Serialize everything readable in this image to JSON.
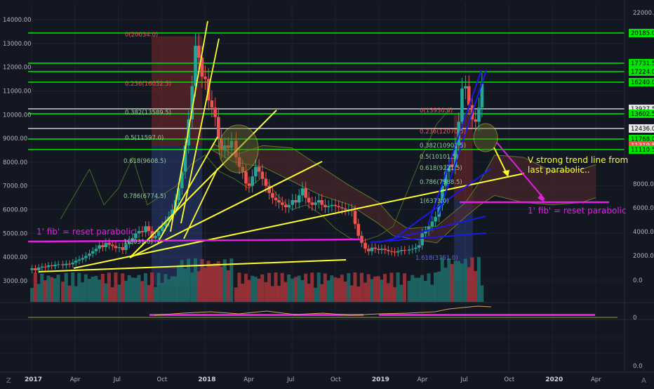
{
  "colors": {
    "background": "#131722",
    "grid": "#1e2230",
    "up_candle": "#26a69a",
    "down_candle": "#ef5350",
    "vol_up": "#1f6e6a",
    "vol_down": "#a8343b",
    "green_level": "#00e600",
    "white_level": "#c8c8c8",
    "yellow_trend": "#ffff2e",
    "magenta": "#e21fe0",
    "blue_trend": "#1a1ae6",
    "olive_ichimoku": "#5f7a2a",
    "axis_text": "#b2b5be",
    "last_price_badge": "#ef5350"
  },
  "left_axis_ticks": [
    "14000.00",
    "13000.00",
    "12000.00",
    "11000.00",
    "10000.00",
    "9000.00",
    "8000.00",
    "7000.00",
    "6000.00",
    "5000.00",
    "4000.00",
    "3000.00"
  ],
  "right_axis_plain": [
    "22000.0",
    "8000.0",
    "6000.0",
    "4000.0",
    "2000.0",
    "0.0"
  ],
  "right_axis_badges": [
    {
      "label": "20185.0",
      "kind": "green"
    },
    {
      "label": "17731.5",
      "kind": "green"
    },
    {
      "label": "17224.0",
      "kind": "green"
    },
    {
      "label": "16240.0",
      "kind": "green"
    },
    {
      "label": "13927.5",
      "kind": "white"
    },
    {
      "label": "13602.5",
      "kind": "green"
    },
    {
      "label": "12436.0",
      "kind": "white"
    },
    {
      "label": "11768.0",
      "kind": "green"
    },
    {
      "label": "11319.5",
      "kind": "red"
    },
    {
      "label": "11110.5",
      "kind": "green"
    }
  ],
  "lower_axis_ticks": [
    "0",
    "0.0"
  ],
  "x_axis_ticks": [
    "2017",
    "Apr",
    "Jul",
    "Oct",
    "2018",
    "Apr",
    "Jul",
    "Oct",
    "2019",
    "Apr",
    "Jul",
    "Oct",
    "2020",
    "Apr"
  ],
  "fib_labels_2017": [
    "0(20034.0)",
    "0.236(16052.5)",
    "0.382(13589.5)",
    "0.5(11597.0)",
    "0.618(9608.5)",
    "0.786(6774.5)",
    "1(3031.0)"
  ],
  "fib_labels_2019": [
    "0(13930.0)",
    "0.236(12070.5)",
    "0.382(10901.5)",
    "0.5(10101.5)",
    "0.618(9221.5)",
    "0.786(7988.5)",
    "1(6373.0)",
    "1.618(3751.0)"
  ],
  "annotations": {
    "left_reset": "1' fib' = reset parabolic",
    "right_reset": "1' fib' = reset parabolic",
    "trend_note": "V strong trend line from last parabolic.."
  },
  "chart_data": {
    "type": "candlestick",
    "title": "",
    "xlabel": "",
    "ylabel": "",
    "x_range": [
      "2017-01",
      "2020-05"
    ],
    "ylim": [
      2700,
      14600
    ],
    "grid": true,
    "price_levels": {
      "green": [
        20185.0,
        17731.5,
        17224.0,
        16240.0,
        13602.5,
        11768.0,
        11110.5
      ],
      "white": [
        13927.5,
        12436.0
      ],
      "last_price": 11319.5
    },
    "weekly_close": [
      [
        "2017-01-02",
        3530
      ],
      [
        "2017-01-09",
        3450
      ],
      [
        "2017-01-16",
        3560
      ],
      [
        "2017-01-23",
        3600
      ],
      [
        "2017-01-30",
        3580
      ],
      [
        "2017-02-06",
        3650
      ],
      [
        "2017-02-13",
        3620
      ],
      [
        "2017-02-20",
        3680
      ],
      [
        "2017-02-27",
        3700
      ],
      [
        "2017-03-06",
        3660
      ],
      [
        "2017-03-13",
        3720
      ],
      [
        "2017-03-20",
        3700
      ],
      [
        "2017-03-27",
        3770
      ],
      [
        "2017-04-03",
        3850
      ],
      [
        "2017-04-10",
        3900
      ],
      [
        "2017-04-17",
        3960
      ],
      [
        "2017-04-24",
        4050
      ],
      [
        "2017-05-01",
        4150
      ],
      [
        "2017-05-08",
        4250
      ],
      [
        "2017-05-15",
        4350
      ],
      [
        "2017-05-22",
        4500
      ],
      [
        "2017-05-29",
        4420
      ],
      [
        "2017-06-05",
        4600
      ],
      [
        "2017-06-12",
        4520
      ],
      [
        "2017-06-19",
        4470
      ],
      [
        "2017-06-26",
        4380
      ],
      [
        "2017-07-03",
        4420
      ],
      [
        "2017-07-10",
        4300
      ],
      [
        "2017-07-17",
        4550
      ],
      [
        "2017-07-24",
        4700
      ],
      [
        "2017-07-31",
        4800
      ],
      [
        "2017-08-07",
        5000
      ],
      [
        "2017-08-14",
        5100
      ],
      [
        "2017-08-21",
        5050
      ],
      [
        "2017-08-28",
        5300
      ],
      [
        "2017-09-04",
        5100
      ],
      [
        "2017-09-11",
        4800
      ],
      [
        "2017-09-18",
        4900
      ],
      [
        "2017-09-25",
        5100
      ],
      [
        "2017-10-02",
        5300
      ],
      [
        "2017-10-09",
        5500
      ],
      [
        "2017-10-16",
        5700
      ],
      [
        "2017-10-23",
        6000
      ],
      [
        "2017-10-30",
        6400
      ],
      [
        "2017-11-06",
        6900
      ],
      [
        "2017-11-13",
        7600
      ],
      [
        "2017-11-20",
        8700
      ],
      [
        "2017-11-27",
        9800
      ],
      [
        "2017-12-04",
        11200
      ],
      [
        "2017-12-11",
        12900
      ],
      [
        "2017-12-18",
        12400
      ],
      [
        "2017-12-25",
        11600
      ],
      [
        "2018-01-01",
        11500
      ],
      [
        "2018-01-08",
        10600
      ],
      [
        "2018-01-15",
        10300
      ],
      [
        "2018-01-22",
        9900
      ],
      [
        "2018-01-29",
        9000
      ],
      [
        "2018-02-05",
        8500
      ],
      [
        "2018-02-12",
        8700
      ],
      [
        "2018-02-19",
        8600
      ],
      [
        "2018-02-26",
        8900
      ],
      [
        "2018-03-05",
        8200
      ],
      [
        "2018-03-12",
        7800
      ],
      [
        "2018-03-19",
        7600
      ],
      [
        "2018-03-26",
        7100
      ],
      [
        "2018-04-02",
        7000
      ],
      [
        "2018-04-09",
        7400
      ],
      [
        "2018-04-16",
        7800
      ],
      [
        "2018-04-23",
        7600
      ],
      [
        "2018-04-30",
        7300
      ],
      [
        "2018-05-07",
        7000
      ],
      [
        "2018-05-14",
        6700
      ],
      [
        "2018-05-21",
        6500
      ],
      [
        "2018-05-28",
        6400
      ],
      [
        "2018-06-04",
        6300
      ],
      [
        "2018-06-11",
        6200
      ],
      [
        "2018-06-18",
        6100
      ],
      [
        "2018-06-25",
        6200
      ],
      [
        "2018-07-02",
        6400
      ],
      [
        "2018-07-09",
        6300
      ],
      [
        "2018-07-16",
        6600
      ],
      [
        "2018-07-23",
        6900
      ],
      [
        "2018-07-30",
        6500
      ],
      [
        "2018-08-06",
        6300
      ],
      [
        "2018-08-13",
        6200
      ],
      [
        "2018-08-20",
        6300
      ],
      [
        "2018-08-27",
        6400
      ],
      [
        "2018-09-03",
        6200
      ],
      [
        "2018-09-10",
        6100
      ],
      [
        "2018-09-17",
        6150
      ],
      [
        "2018-09-24",
        6200
      ],
      [
        "2018-10-01",
        6150
      ],
      [
        "2018-10-08",
        6100
      ],
      [
        "2018-10-15",
        6050
      ],
      [
        "2018-10-22",
        6000
      ],
      [
        "2018-10-29",
        6000
      ],
      [
        "2018-11-05",
        5950
      ],
      [
        "2018-11-12",
        5400
      ],
      [
        "2018-11-19",
        4900
      ],
      [
        "2018-11-26",
        4600
      ],
      [
        "2018-12-03",
        4350
      ],
      [
        "2018-12-10",
        4250
      ],
      [
        "2018-12-17",
        4400
      ],
      [
        "2018-12-24",
        4350
      ],
      [
        "2018-12-31",
        4300
      ],
      [
        "2019-01-07",
        4350
      ],
      [
        "2019-01-14",
        4300
      ],
      [
        "2019-01-21",
        4250
      ],
      [
        "2019-01-28",
        4230
      ],
      [
        "2019-02-04",
        4200
      ],
      [
        "2019-02-11",
        4250
      ],
      [
        "2019-02-18",
        4300
      ],
      [
        "2019-02-25",
        4280
      ],
      [
        "2019-03-04",
        4320
      ],
      [
        "2019-03-11",
        4350
      ],
      [
        "2019-03-18",
        4400
      ],
      [
        "2019-03-25",
        4500
      ],
      [
        "2019-04-01",
        5000
      ],
      [
        "2019-04-08",
        5100
      ],
      [
        "2019-04-15",
        5300
      ],
      [
        "2019-04-22",
        5500
      ],
      [
        "2019-04-29",
        5700
      ],
      [
        "2019-05-06",
        6200
      ],
      [
        "2019-05-13",
        7000
      ],
      [
        "2019-05-20",
        7600
      ],
      [
        "2019-05-27",
        7900
      ],
      [
        "2019-06-03",
        7800
      ],
      [
        "2019-06-10",
        8700
      ],
      [
        "2019-06-17",
        9700
      ],
      [
        "2019-06-24",
        11100
      ],
      [
        "2019-07-01",
        11200
      ],
      [
        "2019-07-08",
        10400
      ],
      [
        "2019-07-15",
        9800
      ],
      [
        "2019-07-22",
        9700
      ],
      [
        "2019-07-29",
        10300
      ],
      [
        "2019-08-05",
        11300
      ]
    ],
    "volume_note": "weekly volume histogram below price",
    "indicators": [
      "ichimoku cloud",
      "moving average",
      "oscillator panel"
    ]
  }
}
